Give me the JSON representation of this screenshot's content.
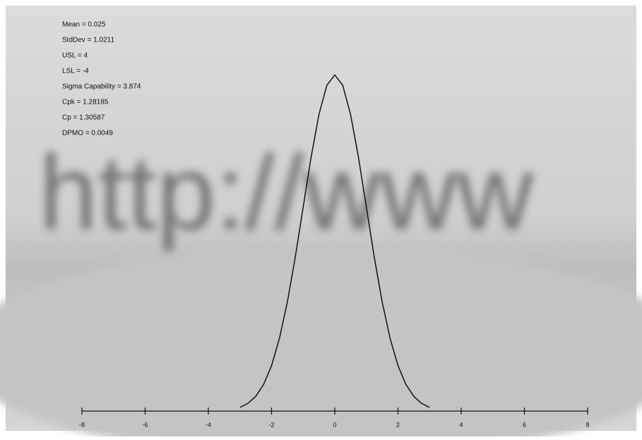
{
  "chart_data": {
    "type": "line",
    "background_text": "http://www",
    "annotations": [
      "Mean = 0.025",
      "StdDev = 1.0211",
      "USL = 4",
      "LSL = -4",
      "Sigma Capability = 3.874",
      "Cpk = 1.28185",
      "Cp = 1.30587",
      "DPMO = 0.0049"
    ],
    "x": [
      -3,
      -2.75,
      -2.5,
      -2.25,
      -2,
      -1.75,
      -1.5,
      -1.25,
      -1,
      -0.75,
      -0.5,
      -0.25,
      0,
      0.25,
      0.5,
      0.75,
      1,
      1.25,
      1.5,
      1.75,
      2,
      2.25,
      2.5,
      2.75,
      3
    ],
    "series": [
      {
        "color": "#111111",
        "values": [
          0.0044,
          0.0091,
          0.0175,
          0.0317,
          0.054,
          0.0863,
          0.1295,
          0.1826,
          0.242,
          0.3011,
          0.3521,
          0.3867,
          0.3989,
          0.3867,
          0.3521,
          0.3011,
          0.242,
          0.1826,
          0.1295,
          0.0863,
          0.054,
          0.0317,
          0.0175,
          0.0091,
          0.0044
        ]
      }
    ],
    "xlim": [
      -8,
      8
    ],
    "xticks": [
      -8,
      -6,
      -4,
      -2,
      0,
      2,
      4,
      6,
      8
    ],
    "ylim": [
      0,
      0.4
    ]
  }
}
